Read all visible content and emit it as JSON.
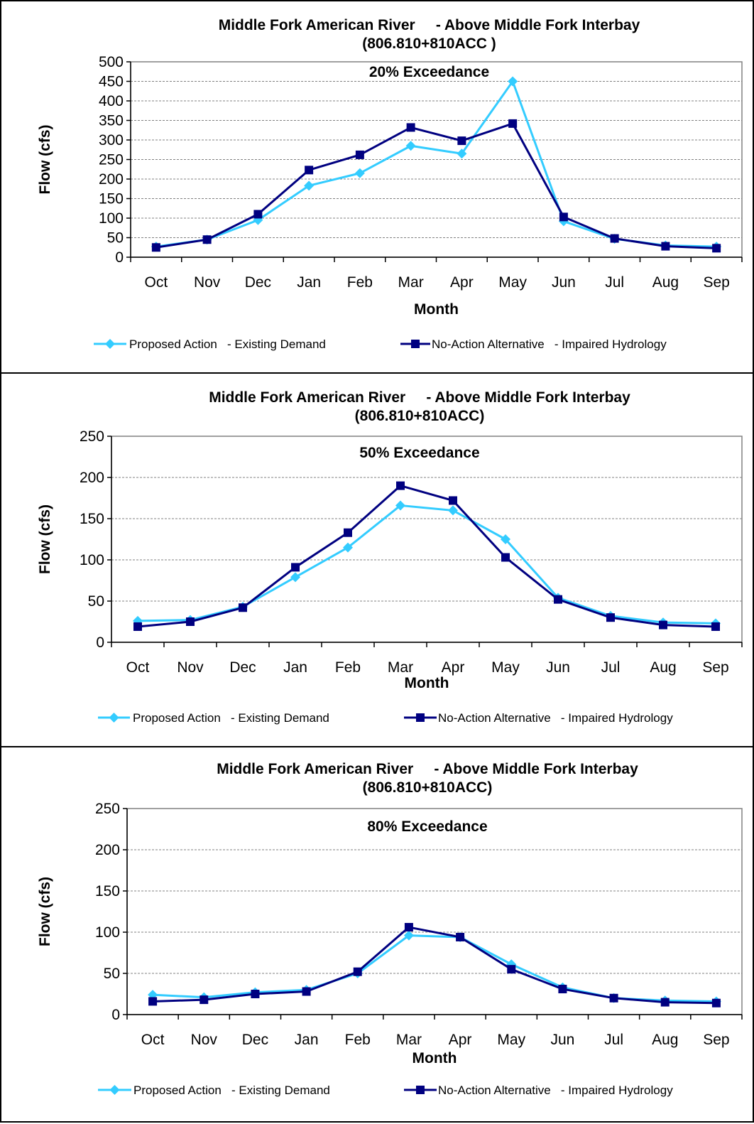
{
  "chart_data": [
    {
      "type": "line",
      "title": "Middle Fork American River     - Above Middle Fork Interbay",
      "subtitle": "(806.810+810ACC )",
      "annotation": "20% Exceedance",
      "xlabel": "Month",
      "ylabel": "Flow (cfs)",
      "ylim": [
        0,
        500
      ],
      "yticks": [
        0,
        50,
        100,
        150,
        200,
        250,
        300,
        350,
        400,
        450,
        500
      ],
      "grid": true,
      "legend_position": "bottom",
      "categories": [
        "Oct",
        "Nov",
        "Dec",
        "Jan",
        "Feb",
        "Mar",
        "Apr",
        "May",
        "Jun",
        "Jul",
        "Aug",
        "Sep"
      ],
      "series": [
        {
          "name": "Proposed Action   - Existing Demand",
          "color": "#33CCFF",
          "marker": "diamond",
          "values": [
            27,
            45,
            95,
            183,
            215,
            285,
            265,
            450,
            92,
            47,
            30,
            27
          ]
        },
        {
          "name": "No-Action Alternative   - Impaired Hydrology",
          "color": "#000080",
          "marker": "square",
          "values": [
            25,
            45,
            110,
            223,
            262,
            332,
            298,
            342,
            103,
            48,
            28,
            23
          ]
        }
      ]
    },
    {
      "type": "line",
      "title": "Middle Fork American River     - Above Middle Fork Interbay",
      "subtitle": "(806.810+810ACC)",
      "annotation": "50% Exceedance",
      "xlabel": "Month",
      "ylabel": "Flow (cfs)",
      "ylim": [
        0,
        250
      ],
      "yticks": [
        0,
        50,
        100,
        150,
        200,
        250
      ],
      "grid": true,
      "legend_position": "bottom",
      "categories": [
        "Oct",
        "Nov",
        "Dec",
        "Jan",
        "Feb",
        "Mar",
        "Apr",
        "May",
        "Jun",
        "Jul",
        "Aug",
        "Sep"
      ],
      "series": [
        {
          "name": "Proposed Action   - Existing Demand",
          "color": "#33CCFF",
          "marker": "diamond",
          "values": [
            26,
            27,
            43,
            79,
            115,
            166,
            160,
            125,
            54,
            32,
            24,
            23
          ]
        },
        {
          "name": "No-Action Alternative   - Impaired Hydrology",
          "color": "#000080",
          "marker": "square",
          "values": [
            19,
            25,
            42,
            91,
            133,
            190,
            172,
            103,
            52,
            30,
            21,
            19
          ]
        }
      ]
    },
    {
      "type": "line",
      "title": "Middle Fork American River     - Above Middle Fork Interbay",
      "subtitle": "(806.810+810ACC)",
      "annotation": "80% Exceedance",
      "xlabel": "Month",
      "ylabel": "Flow (cfs)",
      "ylim": [
        0,
        250
      ],
      "yticks": [
        0,
        50,
        100,
        150,
        200,
        250
      ],
      "grid": true,
      "legend_position": "bottom",
      "categories": [
        "Oct",
        "Nov",
        "Dec",
        "Jan",
        "Feb",
        "Mar",
        "Apr",
        "May",
        "Jun",
        "Jul",
        "Aug",
        "Sep"
      ],
      "series": [
        {
          "name": "Proposed Action   - Existing Demand",
          "color": "#33CCFF",
          "marker": "diamond",
          "values": [
            24,
            21,
            27,
            30,
            50,
            96,
            94,
            61,
            33,
            20,
            17,
            16
          ]
        },
        {
          "name": "No-Action Alternative   - Impaired Hydrology",
          "color": "#000080",
          "marker": "square",
          "values": [
            16,
            18,
            25,
            28,
            52,
            106,
            94,
            55,
            31,
            20,
            15,
            14
          ]
        }
      ]
    }
  ]
}
